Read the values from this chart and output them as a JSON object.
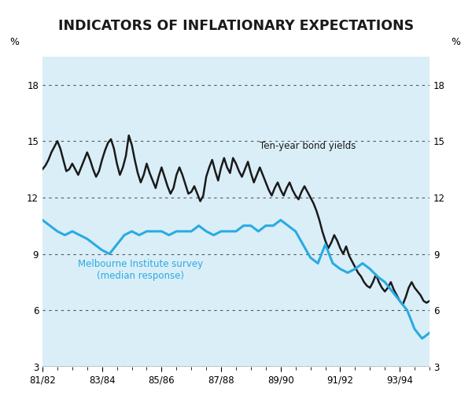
{
  "title": "INDICATORS OF INFLATIONARY EXPECTATIONS",
  "background_color": "#daeef8",
  "ylabel_left": "%",
  "ylabel_right": "%",
  "ylim": [
    3,
    19.5
  ],
  "yticks": [
    3,
    6,
    9,
    12,
    15,
    18
  ],
  "x_labels": [
    "81/82",
    "83/84",
    "85/86",
    "87/88",
    "89/90",
    "91/92",
    "93/94"
  ],
  "x_positions": [
    0,
    2,
    4,
    6,
    8,
    10,
    12
  ],
  "bond_label": "Ten-year bond yields",
  "survey_label_line1": "Melbourne Institute survey",
  "survey_label_line2": "(median response)",
  "bond_color": "#1a1a1a",
  "survey_color": "#29abe2",
  "bond_x": [
    0.0,
    0.1,
    0.2,
    0.3,
    0.4,
    0.5,
    0.6,
    0.7,
    0.8,
    0.9,
    1.0,
    1.1,
    1.2,
    1.3,
    1.4,
    1.5,
    1.6,
    1.7,
    1.8,
    1.9,
    2.0,
    2.1,
    2.2,
    2.3,
    2.4,
    2.5,
    2.6,
    2.7,
    2.8,
    2.9,
    3.0,
    3.1,
    3.2,
    3.3,
    3.4,
    3.5,
    3.6,
    3.7,
    3.8,
    3.9,
    4.0,
    4.1,
    4.2,
    4.3,
    4.4,
    4.5,
    4.6,
    4.7,
    4.8,
    4.9,
    5.0,
    5.1,
    5.2,
    5.3,
    5.4,
    5.5,
    5.6,
    5.7,
    5.8,
    5.9,
    6.0,
    6.1,
    6.2,
    6.3,
    6.4,
    6.5,
    6.6,
    6.7,
    6.8,
    6.9,
    7.0,
    7.1,
    7.2,
    7.3,
    7.4,
    7.5,
    7.6,
    7.7,
    7.8,
    7.9,
    8.0,
    8.1,
    8.2,
    8.3,
    8.4,
    8.5,
    8.6,
    8.7,
    8.8,
    8.9,
    9.0,
    9.1,
    9.2,
    9.3,
    9.4,
    9.5,
    9.6,
    9.7,
    9.8,
    9.9,
    10.0,
    10.1,
    10.2,
    10.3,
    10.4,
    10.5,
    10.6,
    10.7,
    10.8,
    10.9,
    11.0,
    11.1,
    11.2,
    11.3,
    11.4,
    11.5,
    11.6,
    11.7,
    11.8,
    11.9,
    12.0,
    12.1,
    12.2,
    12.3,
    12.4,
    12.5,
    12.6,
    12.7,
    12.8,
    12.9,
    13.0
  ],
  "bond_y": [
    13.5,
    13.7,
    14.0,
    14.4,
    14.7,
    15.0,
    14.6,
    14.0,
    13.4,
    13.5,
    13.8,
    13.5,
    13.2,
    13.6,
    14.0,
    14.4,
    14.0,
    13.5,
    13.1,
    13.4,
    14.0,
    14.5,
    14.9,
    15.1,
    14.6,
    13.8,
    13.2,
    13.6,
    14.2,
    15.3,
    14.8,
    14.0,
    13.3,
    12.8,
    13.2,
    13.8,
    13.3,
    12.9,
    12.5,
    13.1,
    13.6,
    13.1,
    12.6,
    12.2,
    12.5,
    13.2,
    13.6,
    13.2,
    12.7,
    12.2,
    12.3,
    12.6,
    12.2,
    11.8,
    12.1,
    13.1,
    13.6,
    14.0,
    13.4,
    12.9,
    13.6,
    14.1,
    13.6,
    13.3,
    14.1,
    13.8,
    13.4,
    13.1,
    13.5,
    13.9,
    13.3,
    12.8,
    13.2,
    13.6,
    13.2,
    12.8,
    12.4,
    12.1,
    12.5,
    12.8,
    12.4,
    12.1,
    12.5,
    12.8,
    12.4,
    12.1,
    11.9,
    12.3,
    12.6,
    12.3,
    12.0,
    11.7,
    11.3,
    10.8,
    10.2,
    9.7,
    9.3,
    9.6,
    10.0,
    9.7,
    9.3,
    9.0,
    9.4,
    8.9,
    8.6,
    8.3,
    8.0,
    7.8,
    7.5,
    7.3,
    7.2,
    7.5,
    7.9,
    7.5,
    7.2,
    7.0,
    7.2,
    7.5,
    7.1,
    6.8,
    6.5,
    6.3,
    6.7,
    7.2,
    7.5,
    7.2,
    7.0,
    6.8,
    6.5,
    6.4,
    6.5
  ],
  "survey_x": [
    0.0,
    0.25,
    0.5,
    0.75,
    1.0,
    1.25,
    1.5,
    1.75,
    2.0,
    2.25,
    2.5,
    2.75,
    3.0,
    3.25,
    3.5,
    3.75,
    4.0,
    4.25,
    4.5,
    4.75,
    5.0,
    5.25,
    5.5,
    5.75,
    6.0,
    6.25,
    6.5,
    6.75,
    7.0,
    7.25,
    7.5,
    7.75,
    8.0,
    8.25,
    8.5,
    8.75,
    9.0,
    9.25,
    9.5,
    9.75,
    10.0,
    10.25,
    10.5,
    10.75,
    11.0,
    11.25,
    11.5,
    11.75,
    12.0,
    12.25,
    12.5,
    12.75,
    13.0
  ],
  "survey_y": [
    10.8,
    10.5,
    10.2,
    10.0,
    10.2,
    10.0,
    9.8,
    9.5,
    9.2,
    9.0,
    9.5,
    10.0,
    10.2,
    10.0,
    10.2,
    10.2,
    10.2,
    10.0,
    10.2,
    10.2,
    10.2,
    10.5,
    10.2,
    10.0,
    10.2,
    10.2,
    10.2,
    10.5,
    10.5,
    10.2,
    10.5,
    10.5,
    10.8,
    10.5,
    10.2,
    9.5,
    8.8,
    8.5,
    9.5,
    8.5,
    8.2,
    8.0,
    8.2,
    8.5,
    8.2,
    7.8,
    7.5,
    7.0,
    6.5,
    6.0,
    5.0,
    4.5,
    4.8
  ]
}
